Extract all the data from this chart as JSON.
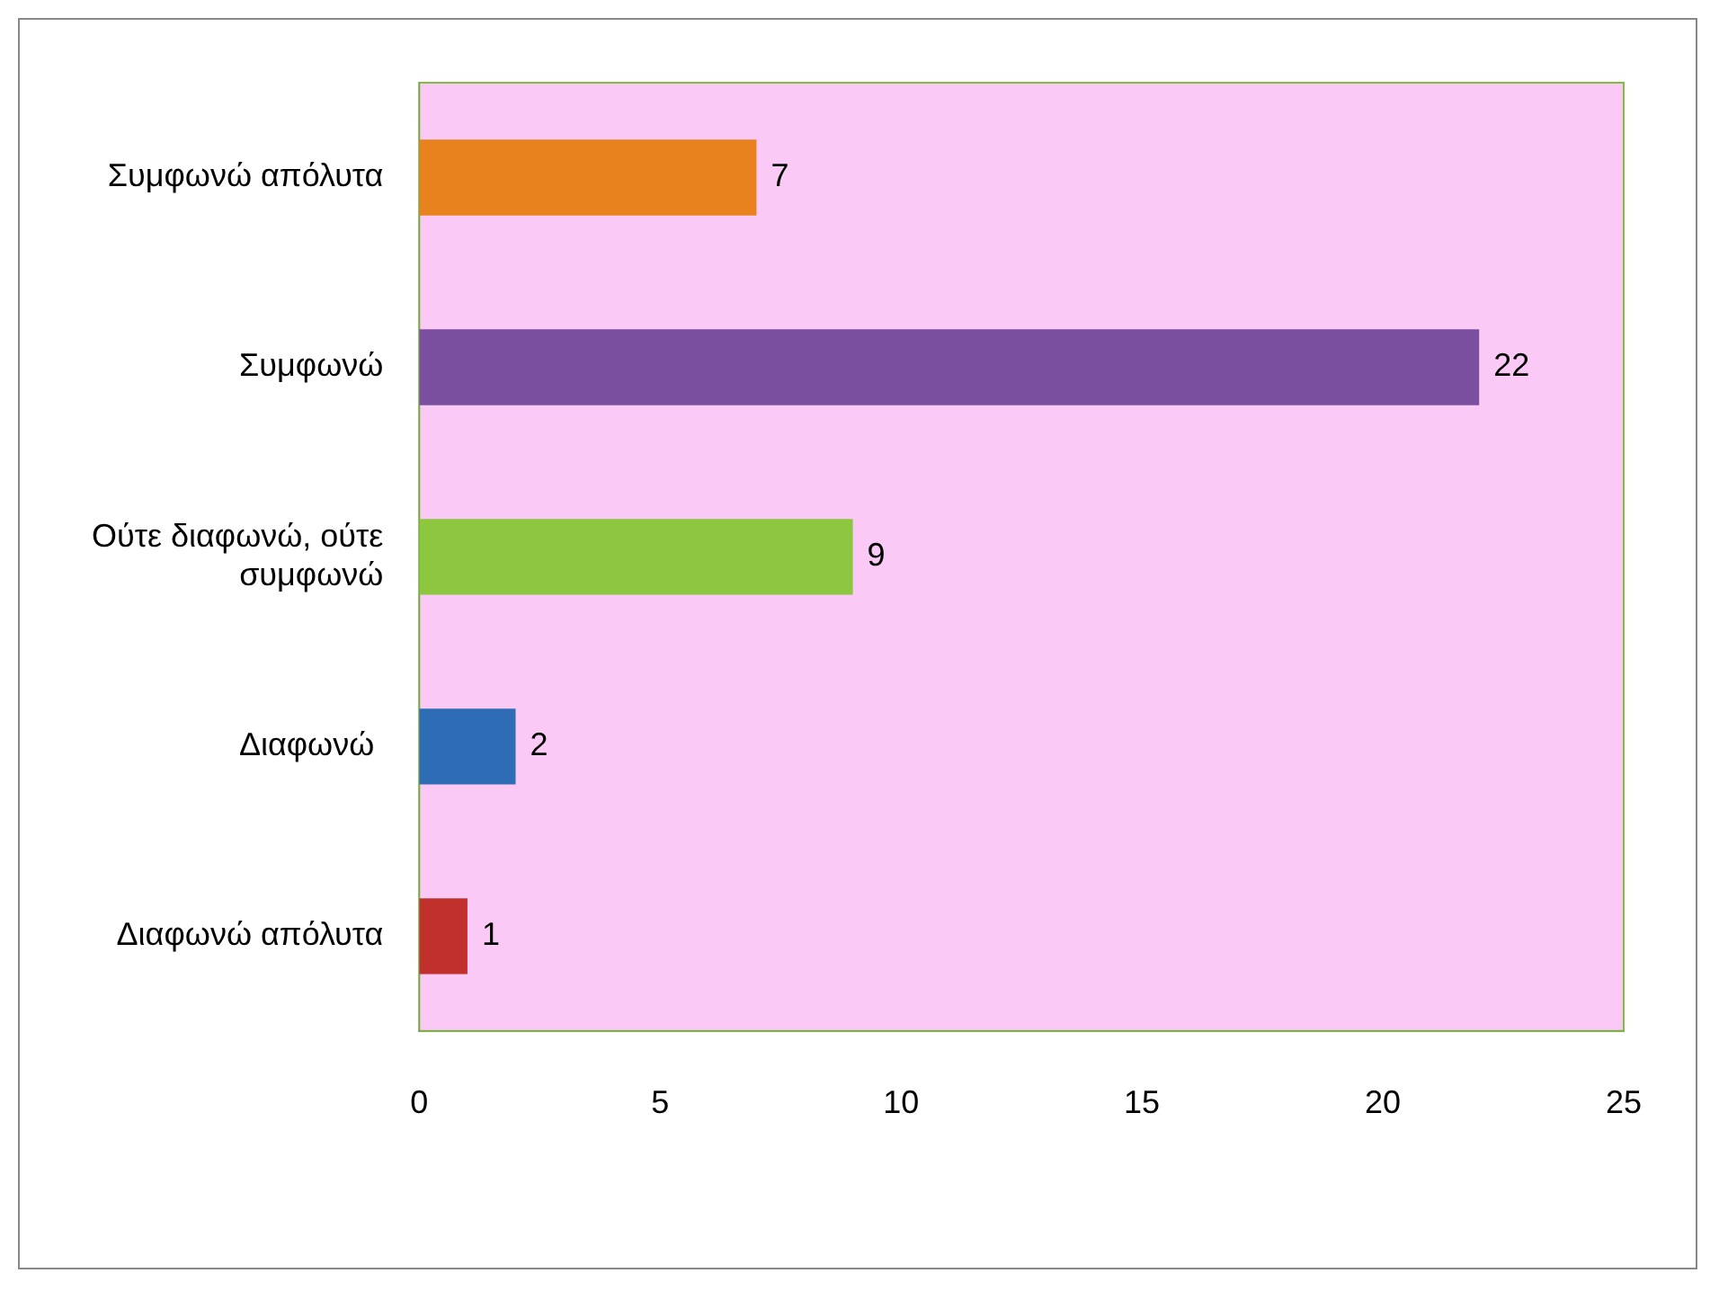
{
  "chart_data": {
    "type": "bar",
    "orientation": "horizontal",
    "categories": [
      "Συμφωνώ απόλυτα",
      "Συμφωνώ",
      "Ούτε διαφωνώ, ούτε συμφωνώ",
      "Διαφωνώ ",
      "Διαφωνώ απόλυτα"
    ],
    "values": [
      7,
      22,
      9,
      2,
      1
    ],
    "colors": [
      "#e8821e",
      "#7b4fa0",
      "#8dc63f",
      "#2e6db5",
      "#c0302c"
    ],
    "xlim": [
      0,
      25
    ],
    "xticks": [
      0,
      5,
      10,
      15,
      20,
      25
    ],
    "grid": false,
    "legend": false,
    "data_labels": true
  }
}
